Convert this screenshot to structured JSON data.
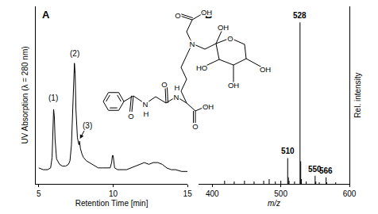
{
  "chart_data": [
    {
      "type": "line",
      "title": "A",
      "x_label": "Retention Time [min]",
      "y_label": "UV Absorption (λ = 280 nm)",
      "x": [
        5.0,
        5.3,
        5.6,
        5.8,
        5.9,
        5.95,
        6.0,
        6.05,
        6.1,
        6.2,
        6.4,
        6.6,
        6.8,
        7.0,
        7.1,
        7.2,
        7.3,
        7.4,
        7.45,
        7.5,
        7.6,
        7.7,
        7.75,
        7.8,
        7.9,
        8.0,
        8.2,
        8.4,
        8.6,
        8.8,
        9.0,
        9.3,
        9.6,
        9.8,
        9.9,
        9.95,
        10.0,
        10.05,
        10.1,
        10.3,
        10.6,
        10.9,
        11.2,
        11.5,
        11.8,
        12.1,
        12.4,
        12.7,
        13.0,
        13.3,
        13.6,
        13.9,
        14.2,
        14.6,
        15.0
      ],
      "values": [
        9,
        8,
        8,
        9,
        15,
        30,
        42,
        38,
        25,
        14,
        11,
        10,
        10,
        11,
        13,
        22,
        50,
        68,
        62,
        42,
        26,
        22,
        24,
        20,
        17,
        15,
        13,
        12,
        11,
        10,
        9,
        9,
        9,
        9,
        12,
        16,
        16,
        12,
        9,
        8,
        8,
        8,
        9,
        10,
        11,
        12,
        11,
        12,
        12,
        11,
        9,
        8,
        8,
        7,
        7
      ],
      "color": "#000000",
      "xlim": [
        4.8,
        15
      ],
      "xticks": [
        5,
        10,
        15
      ],
      "ylim": [
        0,
        100
      ],
      "yticks": [],
      "tick_labels": "x",
      "grid": false,
      "annotations": [
        {
          "text": "(1)",
          "x": 6.0,
          "y": 45
        },
        {
          "text": "(2)",
          "x": 7.4,
          "y": 70
        },
        {
          "text": "(3)",
          "x": 8.25,
          "y": 33,
          "arrow_to": [
            7.75,
            25
          ]
        }
      ]
    },
    {
      "type": "bar",
      "title": "B",
      "x_label": "m/z",
      "y_label": "Rel. intensity",
      "x": [
        418,
        432,
        447,
        461,
        475,
        483,
        492,
        500,
        510,
        511,
        512,
        520,
        528,
        529,
        530,
        537,
        550,
        551,
        556,
        566,
        567,
        580
      ],
      "values": [
        2,
        1.5,
        2,
        1.5,
        2,
        3,
        1.5,
        2,
        16,
        4,
        2,
        1.5,
        100,
        14,
        3,
        1.5,
        5,
        1.5,
        1,
        4,
        1,
        1
      ],
      "color": "#000000",
      "xlim": [
        380,
        600
      ],
      "xticks": [
        400,
        500,
        600
      ],
      "ylim": [
        0,
        110
      ],
      "yticks": [],
      "tick_labels": "x",
      "grid": false,
      "peak_labels": [
        528,
        510,
        550,
        566
      ]
    }
  ],
  "structure": {
    "labels": [
      "O",
      "N",
      "H",
      "O",
      "N",
      "H",
      "OH",
      "O",
      "N",
      "O",
      "OH",
      "O",
      "OH",
      "HO",
      "OH",
      "OH"
    ]
  }
}
